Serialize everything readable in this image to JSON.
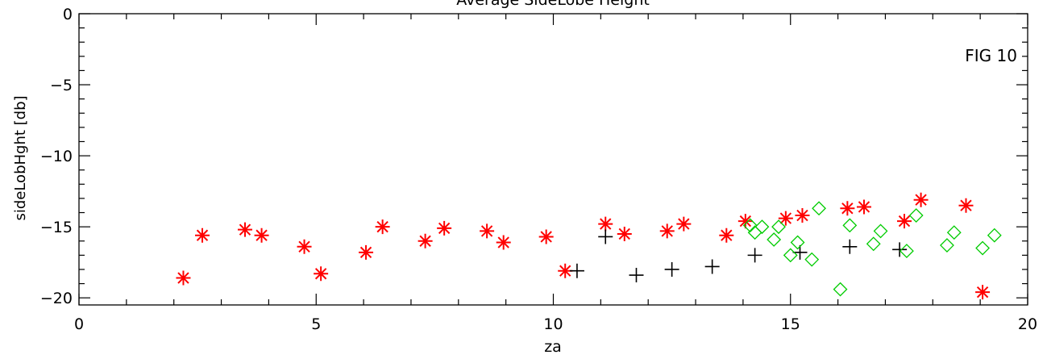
{
  "chart_data": {
    "type": "scatter",
    "title": "Average SideLobe Height",
    "annotation": "FIG 10",
    "xlabel": "za",
    "ylabel": "sideLobHght [db]",
    "xlim": [
      0,
      20
    ],
    "ylim": [
      -20.5,
      0
    ],
    "x_ticks": [
      0,
      5,
      10,
      15,
      20
    ],
    "y_ticks": [
      0,
      -5,
      -10,
      -15,
      -20
    ],
    "x_tick_labels": [
      "0",
      "5",
      "10",
      "15",
      "20"
    ],
    "y_tick_labels": [
      "0",
      "−5",
      "−10",
      "−15",
      "−20"
    ],
    "grid": false,
    "series": [
      {
        "marker": "asterisk",
        "color": "#ff0000",
        "x": [
          2.2,
          2.6,
          3.5,
          3.85,
          4.75,
          5.1,
          6.05,
          6.4,
          7.3,
          7.7,
          8.6,
          8.95,
          9.85,
          10.25,
          11.1,
          11.5,
          12.4,
          12.75,
          13.65,
          14.05,
          14.9,
          15.25,
          16.2,
          16.55,
          17.4,
          17.75,
          18.7,
          19.05
        ],
        "y": [
          -18.6,
          -15.6,
          -15.2,
          -15.6,
          -16.4,
          -18.3,
          -16.8,
          -15.0,
          -16.0,
          -15.1,
          -15.3,
          -16.1,
          -15.7,
          -18.1,
          -14.8,
          -15.5,
          -15.3,
          -14.8,
          -15.6,
          -14.6,
          -14.4,
          -14.2,
          -13.7,
          -13.6,
          -14.6,
          -13.1,
          -13.5,
          -19.6
        ]
      },
      {
        "marker": "plus",
        "color": "#000000",
        "x": [
          10.5,
          11.1,
          11.75,
          12.5,
          13.35,
          14.25,
          15.2,
          16.25,
          17.3
        ],
        "y": [
          -18.1,
          -15.7,
          -18.4,
          -18.0,
          -17.8,
          -17.0,
          -16.8,
          -16.4,
          -16.6
        ]
      },
      {
        "marker": "diamond",
        "color": "#00cc00",
        "x": [
          14.15,
          14.25,
          14.4,
          14.65,
          14.75,
          15.0,
          15.15,
          15.45,
          15.6,
          16.05,
          16.25,
          16.75,
          16.9,
          17.45,
          17.65,
          18.3,
          18.45,
          19.05,
          19.3
        ],
        "y": [
          -14.9,
          -15.4,
          -15.0,
          -15.9,
          -15.0,
          -17.0,
          -16.1,
          -17.3,
          -13.7,
          -19.4,
          -14.9,
          -16.2,
          -15.3,
          -16.7,
          -14.2,
          -16.3,
          -15.4,
          -16.5,
          -15.6
        ]
      }
    ]
  }
}
